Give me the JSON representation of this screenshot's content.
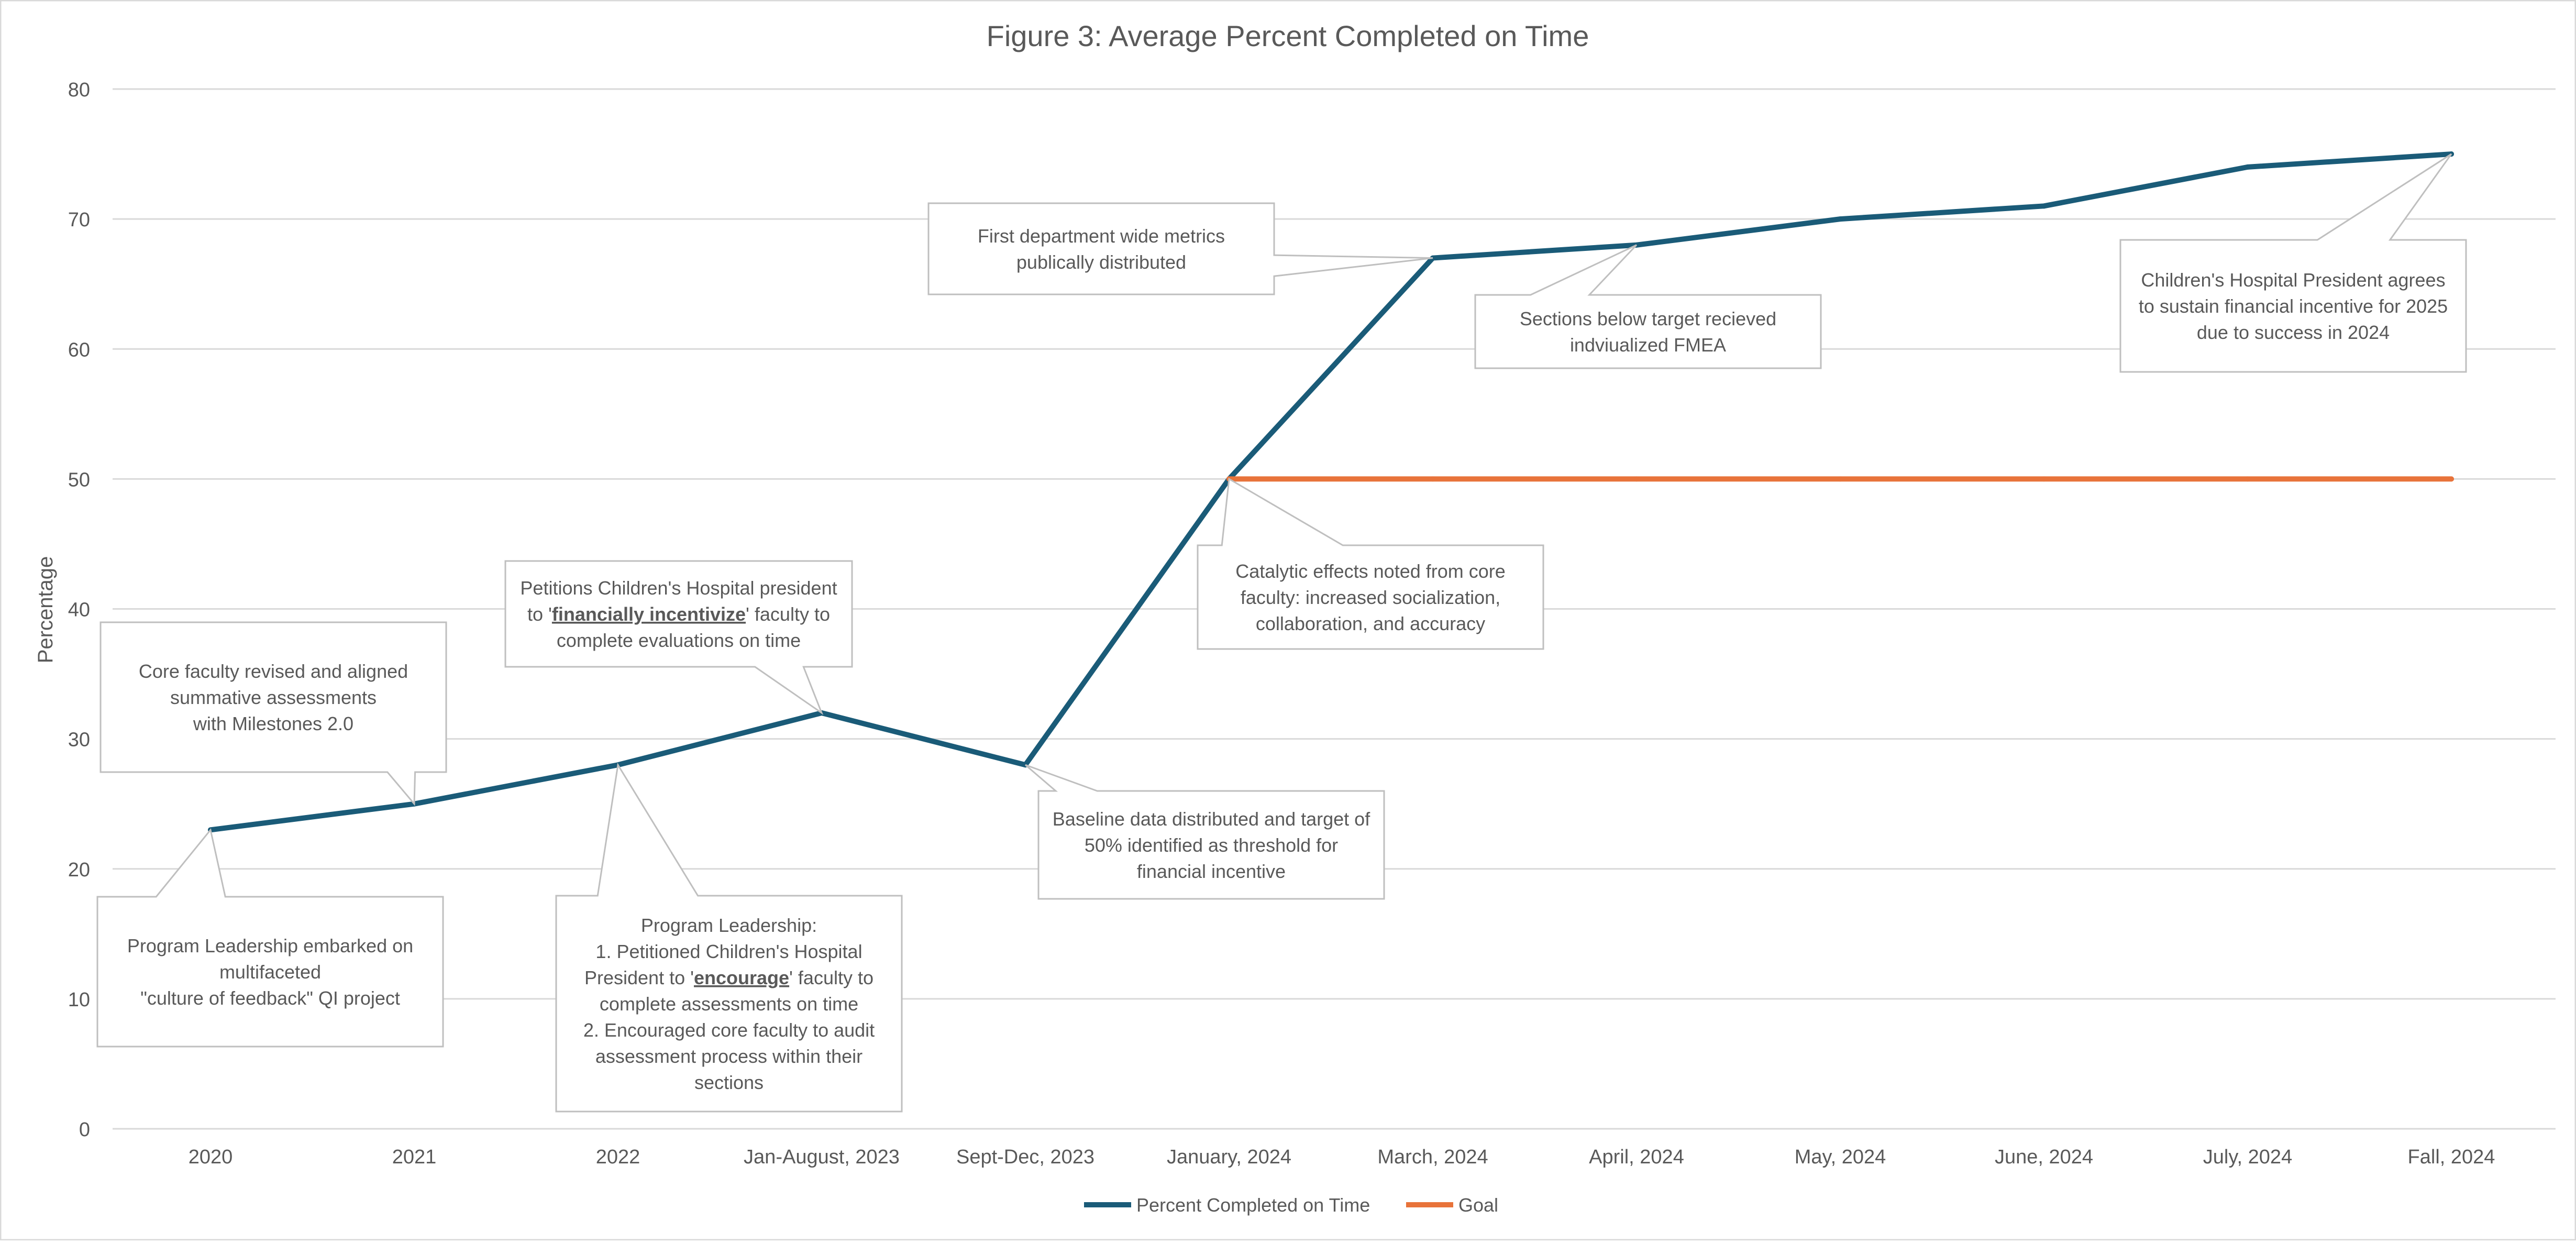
{
  "chart_data": {
    "type": "line",
    "title": "Figure 3: Average Percent Completed on Time",
    "ylabel": "Percentage",
    "xlabel": "",
    "ylim": [
      0,
      80
    ],
    "yticks": [
      0,
      10,
      20,
      30,
      40,
      50,
      60,
      70,
      80
    ],
    "grid": true,
    "legend_position": "bottom",
    "categories": [
      "2020",
      "2021",
      "2022",
      "Jan-August, 2023",
      "Sept-Dec, 2023",
      "January,  2024",
      "March, 2024",
      "April, 2024",
      "May, 2024",
      "June, 2024",
      "July, 2024",
      "Fall, 2024"
    ],
    "series": [
      {
        "name": "Percent Completed on Time",
        "color": "#1a5b78",
        "values": [
          23,
          25,
          28,
          32,
          28,
          50,
          67,
          68,
          70,
          71,
          74,
          75
        ]
      },
      {
        "name": "Goal",
        "color": "#e8733a",
        "values": [
          null,
          null,
          null,
          null,
          null,
          50,
          50,
          50,
          50,
          50,
          50,
          50
        ]
      }
    ],
    "annotations": [
      {
        "text": "Program Leadership embarked on\nmultifaceted\n\"culture of feedback\" QI project",
        "point": 0
      },
      {
        "text": "Core faculty revised and aligned\nsummative assessments\nwith Milestones 2.0",
        "point": 1
      },
      {
        "text": "Program Leadership:\n1. Petitioned Children's Hospital\nPresident to 'encourage' faculty to\ncomplete assessments on time\n2. Encouraged core faculty to audit\nassessment process within their\nsections",
        "point": 2,
        "bold": "encourage"
      },
      {
        "text": "Petitions Children's Hospital president\nto 'financially incentivize' faculty to\ncomplete evaluations on time",
        "point": 3,
        "bold": "financially incentivize"
      },
      {
        "text": "Baseline data distributed and target of\n50% identified as threshold for\nfinancial incentive",
        "point": 4
      },
      {
        "text": "Catalytic effects noted from core\nfaculty: increased socialization,\ncollaboration, and accuracy",
        "point": 5
      },
      {
        "text": "First department wide metrics\npublically distributed",
        "point": 6
      },
      {
        "text": "Sections below target recieved\nindviualized FMEA",
        "point": 7
      },
      {
        "text": "Children's Hospital President agrees\nto sustain financial incentive for 2025\ndue to  success in 2024",
        "point": 11
      }
    ]
  }
}
